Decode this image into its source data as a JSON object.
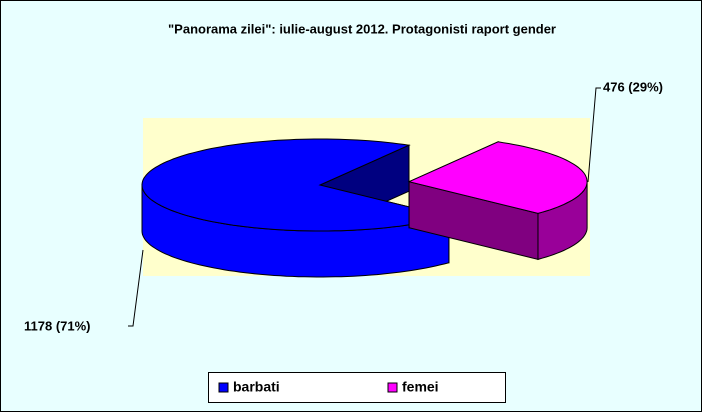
{
  "chart_data": {
    "type": "pie3d",
    "title": "\"Panorama zilei\": iulie-august 2012. Protagonisti raport gender",
    "categories": [
      "barbati",
      "femei"
    ],
    "values": [
      1178,
      476
    ],
    "value_labels": [
      "1178 (71%)",
      "476 (29%)"
    ],
    "colors": [
      "#0000ff",
      "#ff00ff"
    ],
    "legend": "bottom"
  }
}
